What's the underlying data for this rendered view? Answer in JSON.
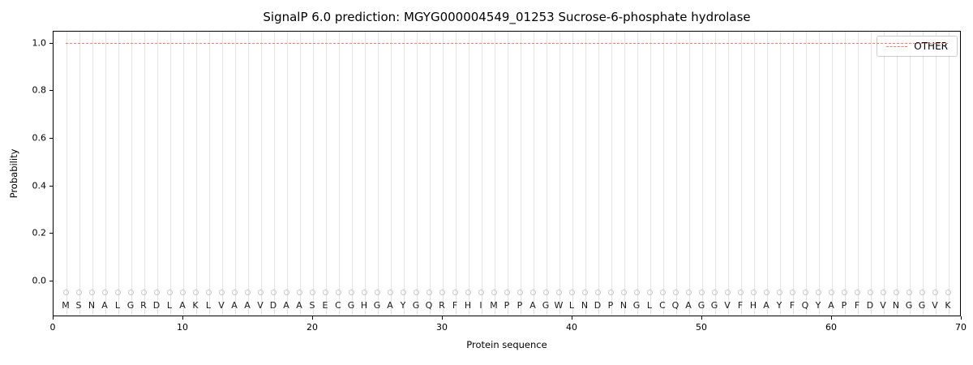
{
  "figure": {
    "title": "SignalP 6.0 prediction: MGYG000004549_01253 Sucrose-6-phosphate hydrolase"
  },
  "chart_data": {
    "type": "line",
    "title": "SignalP 6.0 prediction: MGYG000004549_01253 Sucrose-6-phosphate hydrolase",
    "xlabel": "Protein sequence",
    "ylabel": "Probability",
    "xlim": [
      0,
      70
    ],
    "ylim": [
      -0.15,
      1.05
    ],
    "x_ticks": [
      0,
      10,
      20,
      30,
      40,
      50,
      60,
      70
    ],
    "y_ticks": [
      0.0,
      0.2,
      0.4,
      0.6,
      0.8,
      1.0
    ],
    "grid": "vertical-line-per-residue",
    "grid_color": "#e3e3e3",
    "legend": {
      "position": "upper-right",
      "entries": [
        {
          "label": "OTHER",
          "color": "#f37c7c",
          "style": "dashed"
        }
      ]
    },
    "series": [
      {
        "name": "OTHER",
        "style": "dashed",
        "color": "#f37c7c",
        "constant_value": 1.0,
        "x_start": 1,
        "x_end": 69
      }
    ],
    "sequence": "MSNALGRDLAKLVAAVDAASECGHGAYGQRFHIMPPAGWLNDPNGLCQAGGVFHAYFQYAPFDVNGGVK",
    "residue_marker": {
      "y": -0.05,
      "shape": "circle-open",
      "color": "#c9c9c9"
    },
    "residue_label_y": -0.105
  }
}
